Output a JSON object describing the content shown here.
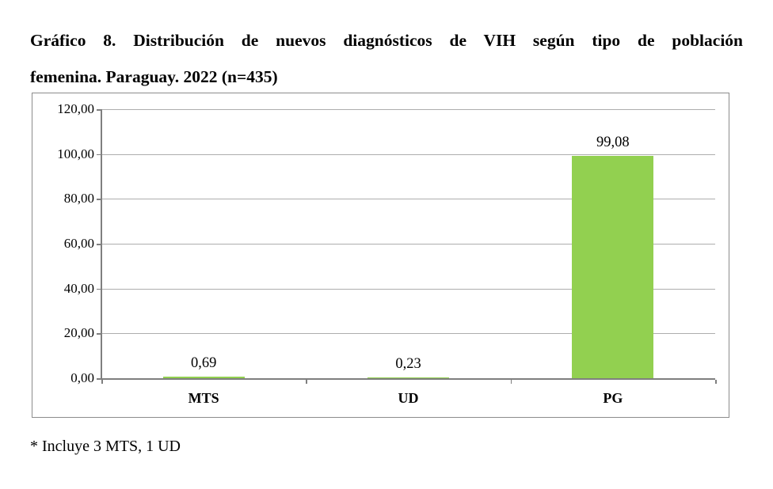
{
  "title": {
    "line1": "Gráfico 8.  Distribución de nuevos diagnósticos de VIH según tipo de población",
    "line2": "femenina. Paraguay. 2022 (n=435)"
  },
  "footnote": "* Incluye 3 MTS, 1 UD",
  "colors": {
    "bar": "#92D050",
    "gridline": "#ADADAD",
    "axis": "#7F7F7F",
    "chart_border": "#8C8C8C",
    "text": "#000000"
  },
  "chart_data": {
    "type": "bar",
    "title": "Gráfico 8. Distribución de nuevos diagnósticos de VIH según tipo de población femenina. Paraguay. 2022 (n=435)",
    "categories": [
      "MTS",
      "UD",
      "PG"
    ],
    "values": [
      0.69,
      0.23,
      99.08
    ],
    "value_labels": [
      "0,69",
      "0,23",
      "99,08"
    ],
    "xlabel": "",
    "ylabel": "",
    "ylim": [
      0,
      120
    ],
    "yticks": [
      {
        "value": 0,
        "label": "0,00"
      },
      {
        "value": 20,
        "label": "20,00"
      },
      {
        "value": 40,
        "label": "40,00"
      },
      {
        "value": 60,
        "label": "60,00"
      },
      {
        "value": 80,
        "label": "80,00"
      },
      {
        "value": 100,
        "label": "100,00"
      },
      {
        "value": 120,
        "label": "120,00"
      }
    ],
    "grid": true,
    "legend": false,
    "bar_width_fraction": 0.4
  }
}
